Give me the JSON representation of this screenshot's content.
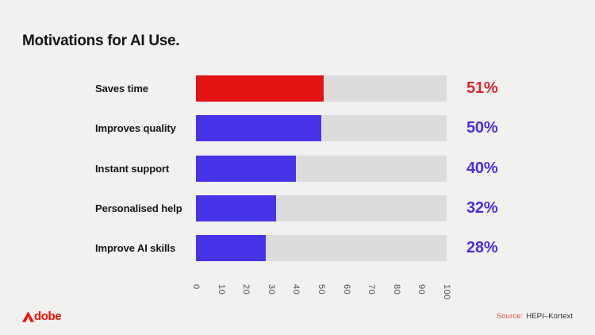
{
  "title": "Motivations for AI Use.",
  "chart_data": {
    "type": "bar",
    "orientation": "horizontal",
    "title": "Motivations for AI Use.",
    "categories": [
      "Saves time",
      "Improves quality",
      "Instant support",
      "Personalised help",
      "Improve AI skills"
    ],
    "values": [
      51,
      50,
      40,
      32,
      28
    ],
    "value_labels": [
      "51%",
      "50%",
      "40%",
      "32%",
      "28%"
    ],
    "xlim": [
      0,
      100
    ],
    "x_tick_values": [
      0,
      10,
      20,
      30,
      40,
      50,
      60,
      70,
      80,
      90,
      100
    ],
    "x_tick_labels": [
      "0",
      "10",
      "20",
      "30",
      "40",
      "50",
      "60",
      "70",
      "80",
      "90",
      "100"
    ],
    "tick_label_rotation_deg": 90,
    "grid": false,
    "legend": false,
    "track_color": "#DCDCDC",
    "bar_colors": [
      "#E41414",
      "#4734E8",
      "#4734E8",
      "#4734E8",
      "#4734E8"
    ],
    "value_label_colors": [
      "#D7282D",
      "#4B2EE0",
      "#4B2EE0",
      "#4B2EE0",
      "#4B2EE0"
    ]
  },
  "colors": {
    "background": "#F1F1F0",
    "title": "#161616",
    "category_label": "#161616",
    "tick_label": "#4D4D4D",
    "brand_red": "#EB1000",
    "source_label_red": "#E0543E",
    "source_value": "#2E2E2E"
  },
  "footer": {
    "brand": "Adobe",
    "source_label": "Source:",
    "source_value": "HEPI–Kortext"
  }
}
